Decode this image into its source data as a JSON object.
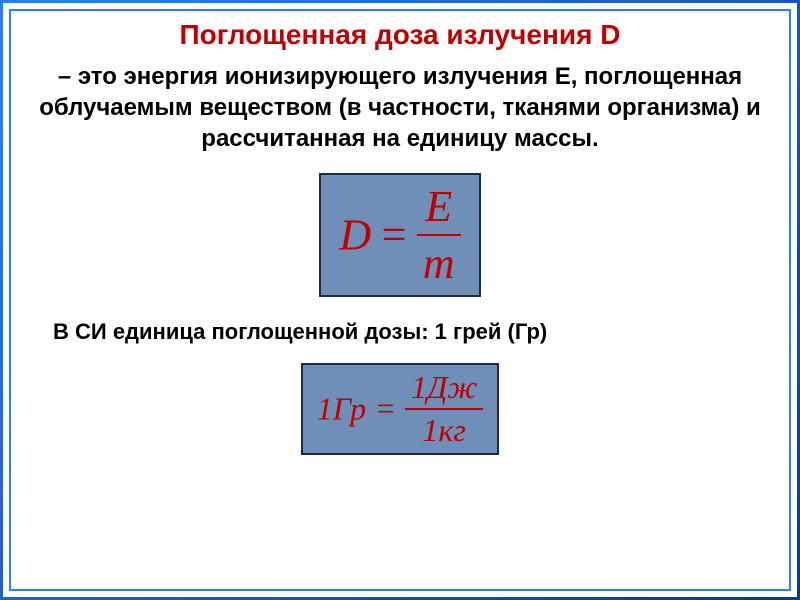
{
  "title": {
    "text": "Поглощенная доза излучения D",
    "color": "#c00000",
    "fontsize": 28
  },
  "definition": {
    "text": "– это энергия ионизирующего излучения Е, поглощенная облучаемым веществом (в частности, тканями организма) и рассчитанная на единицу массы.",
    "color": "#000000",
    "fontsize": 24
  },
  "formula1": {
    "lhs": "D",
    "eq": "=",
    "num": "E",
    "den": "m",
    "box_bg": "#6f8fb8",
    "box_border": "#1a2a4a",
    "text_color": "#c00000",
    "fontsize": 44,
    "italic": true,
    "bar_color": "#c00000",
    "box_padding": "6px 18px"
  },
  "si_note": {
    "text": "В СИ единица поглощенной дозы: 1 грей (Гр)",
    "color": "#000000",
    "fontsize": 22
  },
  "formula2": {
    "lhs": "1Гр",
    "eq": "=",
    "num": "1Дж",
    "den": "1кг",
    "box_bg": "#6f8fb8",
    "box_border": "#1a2a4a",
    "text_color": "#c00000",
    "fontsize": 32,
    "italic": true,
    "bar_color": "#c00000",
    "box_padding": "4px 14px"
  },
  "frame": {
    "outer_gradient_start": "#2a7fff",
    "outer_gradient_end": "#0a3a8a",
    "inner_border_color": "#2a7fff"
  }
}
